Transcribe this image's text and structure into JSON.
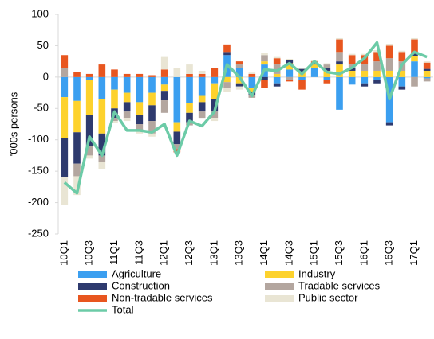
{
  "chart_data": {
    "type": "stacked_bar_line",
    "y_label": "'000s persons",
    "categories": [
      "10Q1",
      null,
      "10Q3",
      null,
      "11Q1",
      null,
      "11Q3",
      null,
      "12Q1",
      null,
      "12Q3",
      null,
      "13Q1",
      null,
      "13Q3",
      null,
      "14Q1",
      null,
      "14Q3",
      null,
      "15Q1",
      null,
      "15Q3",
      null,
      "16Q1",
      null,
      "16Q3",
      null,
      "17Q1",
      null
    ],
    "ylim": [
      -250,
      100
    ],
    "yticks": [
      -250,
      -200,
      -150,
      -100,
      -50,
      0,
      50,
      100
    ],
    "legend": "bottom",
    "series": [
      {
        "name": "Agriculture",
        "color": "#3b9ff0",
        "values": [
          -32,
          -38,
          -5,
          -35,
          -20,
          -25,
          -40,
          -25,
          -12,
          -72,
          -42,
          -30,
          -10,
          35,
          15,
          -18,
          20,
          -10,
          12,
          -5,
          15,
          -5,
          -52,
          -12,
          -10,
          -5,
          -72,
          -15,
          25,
          -2
        ]
      },
      {
        "name": "Industry",
        "color": "#fdd22d",
        "values": [
          -65,
          -50,
          -55,
          -55,
          -30,
          -15,
          -20,
          -20,
          -10,
          -15,
          -15,
          -10,
          -25,
          -8,
          -10,
          -5,
          5,
          5,
          10,
          8,
          5,
          10,
          20,
          10,
          10,
          10,
          10,
          10,
          8,
          10
        ]
      },
      {
        "name": "Construction",
        "color": "#2e3a6e",
        "values": [
          -62,
          -50,
          -50,
          -35,
          -15,
          -15,
          -15,
          -25,
          -15,
          -20,
          -15,
          -15,
          -20,
          5,
          -5,
          -5,
          -5,
          -5,
          5,
          5,
          3,
          5,
          5,
          5,
          -5,
          -5,
          -5,
          -5,
          5,
          3
        ]
      },
      {
        "name": "Tradable services",
        "color": "#b3a69f",
        "values": [
          15,
          -20,
          -15,
          -10,
          -5,
          -10,
          -10,
          -20,
          -20,
          -8,
          -5,
          -10,
          -10,
          -10,
          5,
          -5,
          10,
          15,
          -5,
          0,
          0,
          5,
          15,
          5,
          10,
          15,
          20,
          15,
          -15,
          -5
        ]
      },
      {
        "name": "Non-tradable services",
        "color": "#e8561f",
        "values": [
          20,
          8,
          5,
          20,
          12,
          5,
          5,
          3,
          12,
          -5,
          5,
          5,
          15,
          12,
          5,
          5,
          -12,
          10,
          -2,
          -15,
          2,
          -5,
          20,
          15,
          15,
          15,
          20,
          15,
          22,
          10
        ]
      },
      {
        "name": "Public sector",
        "color": "#e9e5d4",
        "values": [
          -45,
          -30,
          -5,
          -12,
          -3,
          -5,
          -5,
          -5,
          20,
          15,
          15,
          5,
          -5,
          -5,
          -5,
          2,
          3,
          2,
          2,
          2,
          2,
          2,
          2,
          2,
          2,
          3,
          3,
          2,
          2,
          2
        ]
      },
      {
        "name": "Total",
        "type": "line",
        "color": "#6ccba7",
        "values": [
          -168,
          -185,
          -95,
          -125,
          -55,
          -85,
          -85,
          -88,
          -75,
          -125,
          -70,
          -78,
          -55,
          20,
          0,
          -30,
          12,
          10,
          22,
          5,
          25,
          8,
          5,
          15,
          30,
          55,
          -35,
          20,
          40,
          32
        ]
      }
    ]
  }
}
